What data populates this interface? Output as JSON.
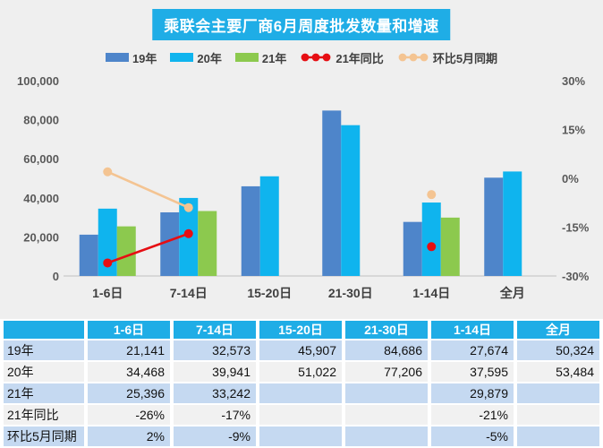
{
  "title": "乘联会主要厂商6月周度批发数量和增速",
  "colors": {
    "accent_cyan": "#1fade6",
    "background": "#efefef",
    "axis_text": "#595959",
    "table_row_blue": "#c5d9f1",
    "table_row_gray": "#f1f1f1"
  },
  "chart_data": {
    "type": "bar",
    "subtype": "bar-line-combo-dual-axis",
    "title": "乘联会主要厂商6月周度批发数量和增速",
    "categories": [
      "1-6日",
      "7-14日",
      "15-20日",
      "21-30日",
      "1-14日",
      "全月"
    ],
    "series": [
      {
        "id": "s19",
        "name": "19年",
        "type": "bar",
        "axis": "left",
        "color": "#4e85ca",
        "values": [
          21141,
          32573,
          45907,
          84686,
          27674,
          50324
        ]
      },
      {
        "id": "s20",
        "name": "20年",
        "type": "bar",
        "axis": "left",
        "color": "#0fb4ee",
        "values": [
          34468,
          39941,
          51022,
          77206,
          37595,
          53484
        ]
      },
      {
        "id": "s21",
        "name": "21年",
        "type": "bar",
        "axis": "left",
        "color": "#8cc94e",
        "values": [
          25396,
          33242,
          null,
          null,
          29879,
          null
        ]
      },
      {
        "id": "yoy",
        "name": "21年同比",
        "type": "line",
        "axis": "right",
        "color": "#e60e13",
        "values": [
          -26,
          -17,
          null,
          null,
          -21,
          null
        ]
      },
      {
        "id": "mom",
        "name": "环比5月同期",
        "type": "line",
        "axis": "right",
        "color": "#f4c492",
        "values": [
          2,
          -9,
          null,
          null,
          -5,
          null
        ]
      }
    ],
    "left_axis": {
      "min": 0,
      "max": 100000,
      "step": 20000,
      "ticks": [
        {
          "value": 0,
          "label": "0"
        },
        {
          "value": 20000,
          "label": "20,000"
        },
        {
          "value": 40000,
          "label": "40,000"
        },
        {
          "value": 60000,
          "label": "60,000"
        },
        {
          "value": 80000,
          "label": "80,000"
        },
        {
          "value": 100000,
          "label": "100,000"
        }
      ]
    },
    "right_axis": {
      "min": -30,
      "max": 30,
      "step": 15,
      "ticks": [
        {
          "value": -30,
          "label": "-30%"
        },
        {
          "value": -15,
          "label": "-15%"
        },
        {
          "value": 0,
          "label": "0%"
        },
        {
          "value": 15,
          "label": "15%"
        },
        {
          "value": 30,
          "label": "30%"
        }
      ]
    },
    "grid": false,
    "legend_position": "top"
  },
  "table": {
    "headers": [
      "",
      "1-6日",
      "7-14日",
      "15-20日",
      "21-30日",
      "1-14日",
      "全月"
    ],
    "rows": [
      {
        "label": "19年",
        "values": [
          "21,141",
          "32,573",
          "45,907",
          "84,686",
          "27,674",
          "50,324"
        ]
      },
      {
        "label": "20年",
        "values": [
          "34,468",
          "39,941",
          "51,022",
          "77,206",
          "37,595",
          "53,484"
        ]
      },
      {
        "label": "21年",
        "values": [
          "25,396",
          "33,242",
          "",
          "",
          "29,879",
          ""
        ]
      },
      {
        "label": "21年同比",
        "values": [
          "-26%",
          "-17%",
          "",
          "",
          "-21%",
          ""
        ]
      },
      {
        "label": "环比5月同期",
        "values": [
          "2%",
          "-9%",
          "",
          "",
          "-5%",
          ""
        ]
      }
    ]
  }
}
